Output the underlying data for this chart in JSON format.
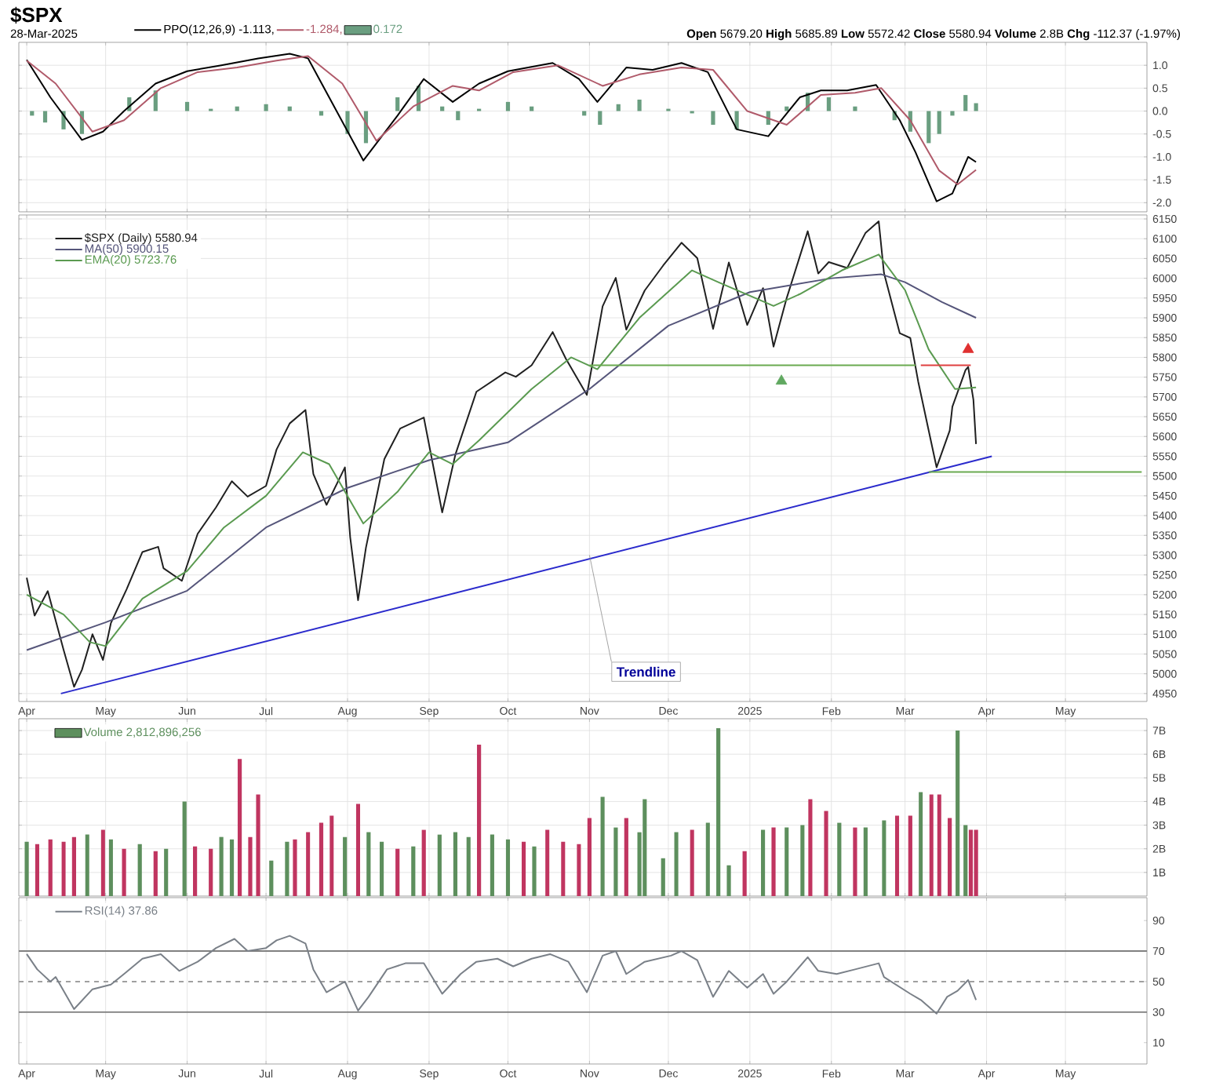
{
  "chart_data": [
    {
      "type": "line",
      "title": "$SPX",
      "subtitle": "28-Mar-2025",
      "annotations": [
        "**Open** 5679.20 **High** 5685.89 **Low** 5572.42 **Close** 5580.94 **Volume** 2.8B **Chg** -112.37 (-1.97%)"
      ],
      "xlim": [
        "2024-03-29",
        "2025-06-01"
      ],
      "xticks": [
        {
          "value": "2024-04-01",
          "label": null
        },
        {
          "value": "2024-05-01",
          "label": null
        },
        {
          "value": "2024-06-01",
          "label": null
        },
        {
          "value": "2024-07-01",
          "label": null
        },
        {
          "value": "2024-08-01",
          "label": null
        },
        {
          "value": "2024-09-01",
          "label": null
        },
        {
          "value": "2024-10-01",
          "label": null
        },
        {
          "value": "2024-11-01",
          "label": null
        },
        {
          "value": "2024-12-01",
          "label": null
        },
        {
          "value": "2025-01-01",
          "label": null
        },
        {
          "value": "2025-02-01",
          "label": null
        },
        {
          "value": "2025-03-01",
          "label": null
        },
        {
          "value": "2025-04-01",
          "label": null
        },
        {
          "value": "2025-05-01",
          "label": null
        }
      ],
      "ylim": [
        -2.2,
        1.5
      ],
      "yticks": [
        {
          "value": -2,
          "label": "-2.0"
        },
        {
          "value": -1.5,
          "label": "-1.5"
        },
        {
          "value": -1,
          "label": "-1.0"
        },
        {
          "value": -0.5,
          "label": "-0.5"
        },
        {
          "value": 0,
          "label": "0.0"
        },
        {
          "value": 0.5,
          "label": "0.5"
        },
        {
          "value": 1,
          "label": "1.0"
        }
      ],
      "grid": true,
      "legend": "top left",
      "tick_labels": "y",
      "series": [
        {
          "name": "PPO(12,26,9) -1.113,",
          "color": "#000000",
          "x": [
            "2024-04-01",
            "2024-04-10",
            "2024-04-22",
            "2024-04-30",
            "2024-05-08",
            "2024-05-20",
            "2024-06-01",
            "2024-06-14",
            "2024-06-28",
            "2024-07-10",
            "2024-07-17",
            "2024-07-25",
            "2024-08-07",
            "2024-08-20",
            "2024-08-30",
            "2024-09-10",
            "2024-09-20",
            "2024-10-01",
            "2024-10-18",
            "2024-10-28",
            "2024-11-04",
            "2024-11-15",
            "2024-11-25",
            "2024-12-06",
            "2024-12-16",
            "2024-12-27",
            "2025-01-08",
            "2025-01-20",
            "2025-01-28",
            "2025-02-07",
            "2025-02-18",
            "2025-02-27",
            "2025-03-05",
            "2025-03-13",
            "2025-03-19",
            "2025-03-25",
            "2025-03-28"
          ],
          "values": [
            1.12,
            0.3,
            -0.63,
            -0.45,
            0.0,
            0.6,
            0.87,
            1.0,
            1.15,
            1.25,
            1.15,
            0.3,
            -1.08,
            -0.1,
            0.7,
            0.2,
            0.6,
            0.87,
            1.05,
            0.7,
            0.2,
            0.95,
            0.9,
            1.05,
            0.85,
            -0.4,
            -0.55,
            0.3,
            0.45,
            0.45,
            0.57,
            -0.2,
            -0.9,
            -1.97,
            -1.8,
            -1.0,
            -1.113
          ]
        },
        {
          "name": "-1.284,",
          "color": "#b05a6a",
          "x": [
            "2024-04-01",
            "2024-04-12",
            "2024-04-26",
            "2024-05-08",
            "2024-05-22",
            "2024-06-05",
            "2024-06-20",
            "2024-07-05",
            "2024-07-17",
            "2024-07-30",
            "2024-08-12",
            "2024-08-26",
            "2024-09-10",
            "2024-09-20",
            "2024-10-03",
            "2024-10-20",
            "2024-11-06",
            "2024-11-20",
            "2024-12-06",
            "2024-12-18",
            "2024-12-31",
            "2025-01-15",
            "2025-01-28",
            "2025-02-10",
            "2025-02-20",
            "2025-03-03",
            "2025-03-14",
            "2025-03-21",
            "2025-03-28"
          ],
          "values": [
            1.1,
            0.6,
            -0.45,
            -0.2,
            0.5,
            0.85,
            0.95,
            1.1,
            1.2,
            0.6,
            -0.65,
            0.1,
            0.55,
            0.45,
            0.85,
            1.0,
            0.55,
            0.8,
            0.95,
            0.9,
            0.0,
            -0.3,
            0.35,
            0.4,
            0.5,
            -0.2,
            -1.3,
            -1.6,
            -1.284
          ]
        },
        {
          "name": "0.172",
          "type": "bar",
          "color": "#6a9e80",
          "x": [
            "2024-04-03",
            "2024-04-08",
            "2024-04-15",
            "2024-04-22",
            "2024-05-01",
            "2024-05-10",
            "2024-05-20",
            "2024-06-01",
            "2024-06-10",
            "2024-06-20",
            "2024-07-01",
            "2024-07-10",
            "2024-07-22",
            "2024-08-01",
            "2024-08-08",
            "2024-08-20",
            "2024-08-28",
            "2024-09-06",
            "2024-09-12",
            "2024-09-20",
            "2024-10-01",
            "2024-10-10",
            "2024-10-20",
            "2024-10-30",
            "2024-11-05",
            "2024-11-12",
            "2024-11-20",
            "2024-12-01",
            "2024-12-10",
            "2024-12-18",
            "2024-12-27",
            "2025-01-08",
            "2025-01-15",
            "2025-01-23",
            "2025-01-31",
            "2025-02-10",
            "2025-02-18",
            "2025-02-25",
            "2025-03-03",
            "2025-03-10",
            "2025-03-14",
            "2025-03-19",
            "2025-03-24",
            "2025-03-28"
          ],
          "values": [
            -0.1,
            -0.25,
            -0.4,
            -0.5,
            0.0,
            0.3,
            0.45,
            0.2,
            0.05,
            0.1,
            0.15,
            0.1,
            -0.1,
            -0.5,
            -0.7,
            0.3,
            0.55,
            0.1,
            -0.2,
            0.05,
            0.2,
            0.1,
            0.0,
            -0.1,
            -0.3,
            0.15,
            0.25,
            0.05,
            -0.05,
            -0.3,
            -0.4,
            -0.3,
            0.1,
            0.4,
            0.3,
            0.1,
            0.0,
            -0.2,
            -0.45,
            -0.7,
            -0.5,
            -0.1,
            0.35,
            0.172
          ]
        }
      ]
    },
    {
      "type": "line",
      "xlim": [
        "2024-03-29",
        "2025-06-01"
      ],
      "xticks": [
        {
          "value": "2024-04-01",
          "label": "Apr"
        },
        {
          "value": "2024-05-01",
          "label": "May"
        },
        {
          "value": "2024-06-01",
          "label": "Jun"
        },
        {
          "value": "2024-07-01",
          "label": "Jul"
        },
        {
          "value": "2024-08-01",
          "label": "Aug"
        },
        {
          "value": "2024-09-01",
          "label": "Sep"
        },
        {
          "value": "2024-10-01",
          "label": "Oct"
        },
        {
          "value": "2024-11-01",
          "label": "Nov"
        },
        {
          "value": "2024-12-01",
          "label": "Dec"
        },
        {
          "value": "2025-01-01",
          "label": "2025"
        },
        {
          "value": "2025-02-01",
          "label": "Feb"
        },
        {
          "value": "2025-03-01",
          "label": "Mar"
        },
        {
          "value": "2025-04-01",
          "label": "Apr"
        },
        {
          "value": "2025-05-01",
          "label": "May"
        }
      ],
      "ylim": [
        4930,
        6160
      ],
      "yticks": [
        4950,
        5000,
        5050,
        5100,
        5150,
        5200,
        5250,
        5300,
        5350,
        5400,
        5450,
        5500,
        5550,
        5600,
        5650,
        5700,
        5750,
        5800,
        5850,
        5900,
        5950,
        6000,
        6050,
        6100,
        6150
      ],
      "grid": true,
      "legend": "top left",
      "annotations": [
        {
          "text": "Trendline",
          "x": "2024-11-01",
          "y": 5300
        }
      ],
      "series": [
        {
          "name": "$SPX (Daily) 5580.94",
          "color": "#202020",
          "x": [
            "2024-04-01",
            "2024-04-04",
            "2024-04-09",
            "2024-04-15",
            "2024-04-19",
            "2024-04-22",
            "2024-04-26",
            "2024-04-30",
            "2024-05-03",
            "2024-05-09",
            "2024-05-15",
            "2024-05-21",
            "2024-05-23",
            "2024-05-30",
            "2024-06-05",
            "2024-06-12",
            "2024-06-18",
            "2024-06-24",
            "2024-07-01",
            "2024-07-05",
            "2024-07-10",
            "2024-07-16",
            "2024-07-19",
            "2024-07-24",
            "2024-07-31",
            "2024-08-02",
            "2024-08-05",
            "2024-08-08",
            "2024-08-15",
            "2024-08-21",
            "2024-08-30",
            "2024-09-06",
            "2024-09-11",
            "2024-09-19",
            "2024-09-30",
            "2024-10-04",
            "2024-10-10",
            "2024-10-18",
            "2024-10-23",
            "2024-10-31",
            "2024-11-06",
            "2024-11-11",
            "2024-11-15",
            "2024-11-22",
            "2024-11-29",
            "2024-12-06",
            "2024-12-12",
            "2024-12-18",
            "2024-12-24",
            "2024-12-31",
            "2025-01-06",
            "2025-01-10",
            "2025-01-15",
            "2025-01-23",
            "2025-01-27",
            "2025-01-31",
            "2025-02-07",
            "2025-02-14",
            "2025-02-19",
            "2025-02-21",
            "2025-02-27",
            "2025-03-03",
            "2025-03-06",
            "2025-03-10",
            "2025-03-13",
            "2025-03-18",
            "2025-03-19",
            "2025-03-24",
            "2025-03-25",
            "2025-03-27",
            "2025-03-28"
          ],
          "values": [
            5243,
            5147,
            5209,
            5061,
            4967,
            5010,
            5100,
            5035,
            5128,
            5214,
            5308,
            5321,
            5267,
            5235,
            5354,
            5421,
            5487,
            5448,
            5475,
            5567,
            5633,
            5667,
            5505,
            5427,
            5522,
            5346,
            5186,
            5319,
            5543,
            5620,
            5648,
            5408,
            5554,
            5713,
            5762,
            5751,
            5780,
            5864,
            5797,
            5705,
            5929,
            6001,
            5870,
            5969,
            6032,
            6090,
            6051,
            5872,
            6040,
            5882,
            5975,
            5827,
            5950,
            6119,
            6012,
            6041,
            6026,
            6115,
            6144,
            6013,
            5861,
            5849,
            5739,
            5615,
            5522,
            5615,
            5675,
            5768,
            5776,
            5693,
            5581
          ]
        },
        {
          "name": "MA(50) 5900.15",
          "color": "#55557a",
          "x": [
            "2024-04-01",
            "2024-05-01",
            "2024-06-01",
            "2024-07-01",
            "2024-08-01",
            "2024-09-01",
            "2024-10-01",
            "2024-11-01",
            "2024-12-01",
            "2025-01-01",
            "2025-02-01",
            "2025-02-20",
            "2025-03-01",
            "2025-03-15",
            "2025-03-28"
          ],
          "values": [
            5060,
            5130,
            5210,
            5370,
            5470,
            5540,
            5585,
            5720,
            5880,
            5965,
            6000,
            6010,
            5990,
            5940,
            5900
          ]
        },
        {
          "name": "EMA(20) 5723.76",
          "color": "#5a9a50",
          "x": [
            "2024-04-01",
            "2024-04-15",
            "2024-04-25",
            "2024-05-01",
            "2024-05-15",
            "2024-06-01",
            "2024-06-15",
            "2024-07-01",
            "2024-07-15",
            "2024-07-25",
            "2024-08-07",
            "2024-08-20",
            "2024-09-01",
            "2024-09-10",
            "2024-09-20",
            "2024-10-10",
            "2024-10-25",
            "2024-11-04",
            "2024-11-20",
            "2024-12-10",
            "2024-12-20",
            "2025-01-10",
            "2025-01-20",
            "2025-02-05",
            "2025-02-19",
            "2025-03-01",
            "2025-03-10",
            "2025-03-20",
            "2025-03-28"
          ],
          "values": [
            5200,
            5150,
            5080,
            5070,
            5190,
            5260,
            5370,
            5450,
            5560,
            5530,
            5380,
            5460,
            5560,
            5530,
            5590,
            5720,
            5800,
            5770,
            5900,
            6020,
            5990,
            5930,
            5960,
            6020,
            6060,
            5970,
            5820,
            5720,
            5724
          ]
        },
        {
          "color": "#2a2acc",
          "x": [
            "2024-04-14",
            "2025-04-03"
          ],
          "values": [
            4950,
            5550
          ]
        },
        {
          "color": "#6aaa50",
          "x": [
            "2024-11-01",
            "2025-03-05"
          ],
          "values": [
            5780,
            5780
          ]
        },
        {
          "color": "#e04040",
          "x": [
            "2025-03-07",
            "2025-03-26"
          ],
          "values": [
            5780,
            5780
          ]
        },
        {
          "color": "#6aaa50",
          "x": [
            "2025-03-10",
            "2025-05-30"
          ],
          "values": [
            5510,
            5510
          ]
        },
        {
          "type": "scatter",
          "marker": "triangle",
          "color": "#60a860",
          "x": [
            "2025-01-13"
          ],
          "values": [
            5740
          ]
        },
        {
          "type": "scatter",
          "marker": "triangle",
          "color": "#e03030",
          "x": [
            "2025-03-25"
          ],
          "values": [
            5820
          ]
        }
      ]
    },
    {
      "type": "bar",
      "xlim": [
        "2024-03-29",
        "2025-06-01"
      ],
      "xticks": [
        {
          "value": "2024-04-01",
          "label": null
        },
        {
          "value": "2024-05-01",
          "label": null
        },
        {
          "value": "2024-06-01",
          "label": null
        },
        {
          "value": "2024-07-01",
          "label": null
        },
        {
          "value": "2024-08-01",
          "label": null
        },
        {
          "value": "2024-09-01",
          "label": null
        },
        {
          "value": "2024-10-01",
          "label": null
        },
        {
          "value": "2024-11-01",
          "label": null
        },
        {
          "value": "2024-12-01",
          "label": null
        },
        {
          "value": "2025-01-01",
          "label": null
        },
        {
          "value": "2025-02-01",
          "label": null
        },
        {
          "value": "2025-03-01",
          "label": null
        },
        {
          "value": "2025-04-01",
          "label": null
        },
        {
          "value": "2025-05-01",
          "label": null
        }
      ],
      "ylim": [
        0,
        7.5
      ],
      "yticks": [
        {
          "value": 1,
          "label": "1B"
        },
        {
          "value": 2,
          "label": "2B"
        },
        {
          "value": 3,
          "label": "3B"
        },
        {
          "value": 4,
          "label": "4B"
        },
        {
          "value": 5,
          "label": "5B"
        },
        {
          "value": 6,
          "label": "6B"
        },
        {
          "value": 7,
          "label": "7B"
        }
      ],
      "grid": true,
      "legend": "top left",
      "tick_labels": "y",
      "series": [
        {
          "name": "Volume 2,812,896,256",
          "color": "#5d8f5d",
          "x": [
            "2024-04-01",
            "2024-04-05",
            "2024-04-10",
            "2024-04-15",
            "2024-04-19",
            "2024-04-24",
            "2024-04-30",
            "2024-05-03",
            "2024-05-08",
            "2024-05-14",
            "2024-05-20",
            "2024-05-24",
            "2024-05-31",
            "2024-06-04",
            "2024-06-10",
            "2024-06-14",
            "2024-06-18",
            "2024-06-21",
            "2024-06-25",
            "2024-06-28",
            "2024-07-03",
            "2024-07-09",
            "2024-07-12",
            "2024-07-17",
            "2024-07-22",
            "2024-07-26",
            "2024-07-31",
            "2024-08-05",
            "2024-08-09",
            "2024-08-14",
            "2024-08-20",
            "2024-08-26",
            "2024-08-30",
            "2024-09-05",
            "2024-09-11",
            "2024-09-16",
            "2024-09-20",
            "2024-09-25",
            "2024-10-01",
            "2024-10-07",
            "2024-10-11",
            "2024-10-16",
            "2024-10-22",
            "2024-10-28",
            "2024-11-01",
            "2024-11-06",
            "2024-11-11",
            "2024-11-15",
            "2024-11-20",
            "2024-11-22",
            "2024-11-29",
            "2024-12-04",
            "2024-12-10",
            "2024-12-16",
            "2024-12-20",
            "2024-12-24",
            "2024-12-30",
            "2025-01-06",
            "2025-01-10",
            "2025-01-15",
            "2025-01-21",
            "2025-01-24",
            "2025-01-30",
            "2025-02-04",
            "2025-02-10",
            "2025-02-14",
            "2025-02-21",
            "2025-02-26",
            "2025-03-03",
            "2025-03-07",
            "2025-03-11",
            "2025-03-14",
            "2025-03-18",
            "2025-03-21",
            "2025-03-24",
            "2025-03-26",
            "2025-03-28"
          ],
          "values": [
            2.3,
            2.2,
            2.4,
            2.3,
            2.5,
            2.6,
            2.8,
            2.4,
            2.0,
            2.2,
            1.9,
            2.0,
            4.0,
            2.1,
            2.0,
            2.5,
            2.4,
            5.8,
            2.5,
            4.3,
            1.5,
            2.3,
            2.4,
            2.7,
            3.1,
            3.4,
            2.5,
            3.9,
            2.7,
            2.3,
            2.0,
            2.1,
            2.8,
            2.6,
            2.7,
            2.5,
            6.4,
            2.6,
            2.4,
            2.3,
            2.1,
            2.8,
            2.3,
            2.2,
            3.3,
            4.2,
            2.9,
            3.3,
            2.7,
            4.1,
            1.6,
            2.7,
            2.8,
            3.1,
            7.1,
            1.3,
            1.9,
            2.8,
            2.9,
            2.9,
            3.0,
            4.1,
            3.6,
            3.1,
            2.9,
            2.9,
            3.2,
            3.4,
            3.4,
            4.4,
            4.3,
            4.3,
            3.3,
            7.0,
            3.0,
            2.8,
            2.8
          ],
          "colors": [
            "#5d8f5d",
            "#c03560",
            "#c03560",
            "#c03560",
            "#c03560",
            "#5d8f5d",
            "#c03560",
            "#5d8f5d",
            "#c03560",
            "#5d8f5d",
            "#c03560",
            "#5d8f5d",
            "#5d8f5d",
            "#c03560",
            "#c03560",
            "#5d8f5d",
            "#5d8f5d",
            "#c03560",
            "#c03560",
            "#c03560",
            "#5d8f5d",
            "#5d8f5d",
            "#c03560",
            "#c03560",
            "#c03560",
            "#c03560",
            "#5d8f5d",
            "#c03560",
            "#5d8f5d",
            "#5d8f5d",
            "#c03560",
            "#5d8f5d",
            "#c03560",
            "#5d8f5d",
            "#5d8f5d",
            "#5d8f5d",
            "#c03560",
            "#5d8f5d",
            "#5d8f5d",
            "#c03560",
            "#5d8f5d",
            "#c03560",
            "#c03560",
            "#c03560",
            "#c03560",
            "#5d8f5d",
            "#5d8f5d",
            "#c03560",
            "#5d8f5d",
            "#5d8f5d",
            "#5d8f5d",
            "#5d8f5d",
            "#c03560",
            "#5d8f5d",
            "#5d8f5d",
            "#5d8f5d",
            "#c03560",
            "#5d8f5d",
            "#c03560",
            "#5d8f5d",
            "#5d8f5d",
            "#c03560",
            "#c03560",
            "#5d8f5d",
            "#c03560",
            "#5d8f5d",
            "#5d8f5d",
            "#c03560",
            "#c03560",
            "#5d8f5d",
            "#c03560",
            "#c03560",
            "#c03560",
            "#5d8f5d",
            "#5d8f5d",
            "#c03560",
            "#c03560"
          ]
        }
      ]
    },
    {
      "type": "line",
      "xlim": [
        "2024-03-29",
        "2025-06-01"
      ],
      "xticks": [
        {
          "value": "2024-04-01",
          "label": "Apr"
        },
        {
          "value": "2024-05-01",
          "label": "May"
        },
        {
          "value": "2024-06-01",
          "label": "Jun"
        },
        {
          "value": "2024-07-01",
          "label": "Jul"
        },
        {
          "value": "2024-08-01",
          "label": "Aug"
        },
        {
          "value": "2024-09-01",
          "label": "Sep"
        },
        {
          "value": "2024-10-01",
          "label": "Oct"
        },
        {
          "value": "2024-11-01",
          "label": "Nov"
        },
        {
          "value": "2024-12-01",
          "label": "Dec"
        },
        {
          "value": "2025-01-01",
          "label": "2025"
        },
        {
          "value": "2025-02-01",
          "label": "Feb"
        },
        {
          "value": "2025-03-01",
          "label": "Mar"
        },
        {
          "value": "2025-04-01",
          "label": "Apr"
        },
        {
          "value": "2025-05-01",
          "label": "May"
        }
      ],
      "ylim": [
        -4,
        105
      ],
      "yticks": [
        10,
        30,
        50,
        70,
        90
      ],
      "grid": "x",
      "legend": "top left",
      "ref_lines": [
        {
          "axis": "y",
          "value": 70,
          "color": "#808080"
        },
        {
          "axis": "y",
          "value": 30,
          "color": "#808080"
        },
        {
          "axis": "y",
          "value": 50,
          "color": "#a0a0a0",
          "line_style": "dashed"
        }
      ],
      "series": [
        {
          "name": "RSI(14) 37.86",
          "color": "#7a8088",
          "x": [
            "2024-04-01",
            "2024-04-05",
            "2024-04-10",
            "2024-04-12",
            "2024-04-19",
            "2024-04-26",
            "2024-05-03",
            "2024-05-08",
            "2024-05-15",
            "2024-05-22",
            "2024-05-29",
            "2024-06-05",
            "2024-06-12",
            "2024-06-19",
            "2024-06-24",
            "2024-07-01",
            "2024-07-05",
            "2024-07-10",
            "2024-07-16",
            "2024-07-19",
            "2024-07-24",
            "2024-07-31",
            "2024-08-05",
            "2024-08-09",
            "2024-08-16",
            "2024-08-23",
            "2024-08-30",
            "2024-09-06",
            "2024-09-13",
            "2024-09-19",
            "2024-09-27",
            "2024-10-03",
            "2024-10-10",
            "2024-10-17",
            "2024-10-24",
            "2024-10-31",
            "2024-11-06",
            "2024-11-11",
            "2024-11-15",
            "2024-11-22",
            "2024-12-02",
            "2024-12-06",
            "2024-12-12",
            "2024-12-18",
            "2024-12-24",
            "2024-12-31",
            "2025-01-06",
            "2025-01-10",
            "2025-01-15",
            "2025-01-23",
            "2025-01-27",
            "2025-02-03",
            "2025-02-10",
            "2025-02-19",
            "2025-02-21",
            "2025-03-03",
            "2025-03-07",
            "2025-03-13",
            "2025-03-17",
            "2025-03-21",
            "2025-03-25",
            "2025-03-28"
          ],
          "values": [
            68,
            58,
            50,
            53,
            32,
            45,
            48,
            55,
            65,
            68,
            57,
            63,
            72,
            78,
            70,
            72,
            77,
            80,
            75,
            58,
            43,
            50,
            31,
            40,
            58,
            62,
            62,
            42,
            55,
            63,
            65,
            60,
            65,
            68,
            63,
            43,
            67,
            70,
            55,
            63,
            67,
            70,
            64,
            40,
            57,
            46,
            55,
            42,
            50,
            66,
            57,
            55,
            58,
            62,
            53,
            42,
            38,
            29,
            40,
            44,
            51,
            38
          ]
        }
      ]
    }
  ]
}
